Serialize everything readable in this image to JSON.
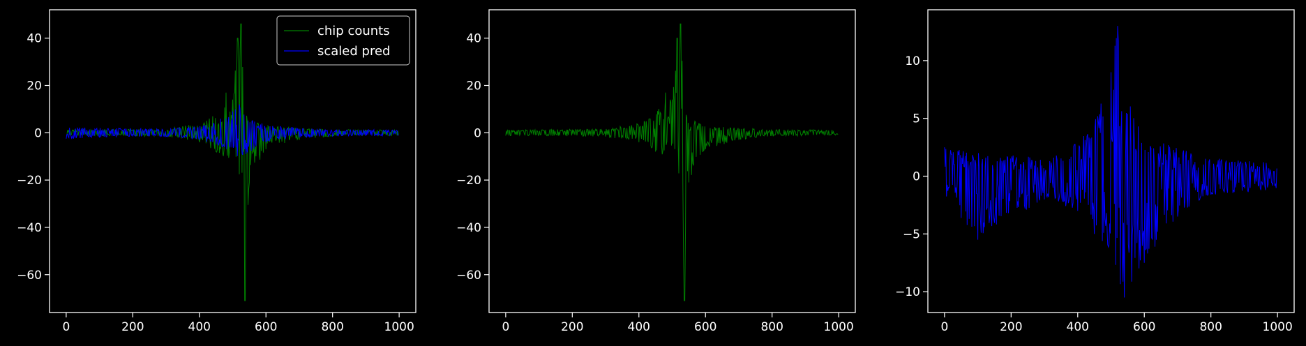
{
  "theme": {
    "background": "#000000",
    "axes_color": "#ffffff",
    "green": "#008000",
    "blue": "#0000ff"
  },
  "chart_data": [
    {
      "type": "line",
      "title": "",
      "xlabel": "",
      "ylabel": "",
      "xlim": [
        -50,
        1050
      ],
      "ylim": [
        -76,
        52
      ],
      "xticks": [
        0,
        200,
        400,
        600,
        800,
        1000
      ],
      "yticks": [
        -60,
        -40,
        -20,
        0,
        20,
        40
      ],
      "legend": {
        "placement": "top-right",
        "entries": [
          "chip counts",
          "scaled pred"
        ]
      },
      "series": [
        {
          "name": "chip counts",
          "color": "#008000",
          "x_range": [
            0,
            999
          ],
          "envelope": {
            "x": [
              0,
              300,
              400,
              450,
              480,
              500,
              515,
              525,
              537,
              550,
              600,
              700,
              800,
              1000
            ],
            "upper": [
              1.2,
              1.6,
              4,
              8,
              17,
              14,
              40,
              46,
              9,
              6,
              3,
              2,
              1.4,
              1.2
            ],
            "lower": [
              -1.2,
              -1.6,
              -4,
              -8,
              -11,
              -10,
              -20,
              -22,
              -71,
              -21,
              -7,
              -3,
              -1.4,
              -1.2
            ]
          }
        },
        {
          "name": "scaled pred",
          "color": "#0000ff",
          "x_range": [
            0,
            999
          ],
          "envelope": {
            "x": [
              0,
              100,
              300,
              400,
              450,
              500,
              520,
              540,
              600,
              700,
              800,
              1000
            ],
            "upper": [
              2.5,
              2,
              1.6,
              3,
              5,
              9,
              12,
              6,
              3.5,
              2,
              1.4,
              1.2
            ],
            "lower": [
              -2.5,
              -2,
              -1.6,
              -3,
              -5,
              -8,
              -11,
              -9,
              -4,
              -2,
              -1.4,
              -1.2
            ]
          }
        }
      ]
    },
    {
      "type": "line",
      "title": "",
      "xlabel": "",
      "ylabel": "",
      "xlim": [
        -50,
        1050
      ],
      "ylim": [
        -76,
        52
      ],
      "xticks": [
        0,
        200,
        400,
        600,
        800,
        1000
      ],
      "yticks": [
        -60,
        -40,
        -20,
        0,
        20,
        40
      ],
      "series": [
        {
          "color": "#008000",
          "x_range": [
            0,
            999
          ],
          "envelope": {
            "x": [
              0,
              300,
              400,
              450,
              480,
              500,
              515,
              525,
              537,
              550,
              600,
              700,
              800,
              1000
            ],
            "upper": [
              1.2,
              1.6,
              4,
              8,
              17,
              14,
              40,
              46,
              9,
              6,
              3,
              2,
              1.4,
              1.2
            ],
            "lower": [
              -1.2,
              -1.6,
              -4,
              -8,
              -11,
              -10,
              -20,
              -22,
              -71,
              -21,
              -7,
              -3,
              -1.4,
              -1.2
            ]
          }
        }
      ]
    },
    {
      "type": "line",
      "title": "",
      "xlabel": "",
      "ylabel": "",
      "xlim": [
        -50,
        1050
      ],
      "ylim": [
        -11.8,
        14.4
      ],
      "xticks": [
        0,
        200,
        400,
        600,
        800,
        1000
      ],
      "yticks": [
        -10,
        -5,
        0,
        5,
        10
      ],
      "series": [
        {
          "color": "#0000ff",
          "x_range": [
            0,
            999
          ],
          "envelope": {
            "x": [
              0,
              100,
              300,
              400,
              450,
              500,
              520,
              540,
              600,
              700,
              800,
              1000
            ],
            "upper": [
              2.5,
              2,
              1.6,
              3,
              5,
              9,
              13,
              7,
              4,
              2.5,
              1.6,
              1.2
            ],
            "lower": [
              -1.8,
              -5.5,
              -2,
              -3,
              -5,
              -8,
              -10,
              -10.5,
              -7.5,
              -3.5,
              -1.6,
              -1.2
            ]
          }
        }
      ]
    }
  ]
}
